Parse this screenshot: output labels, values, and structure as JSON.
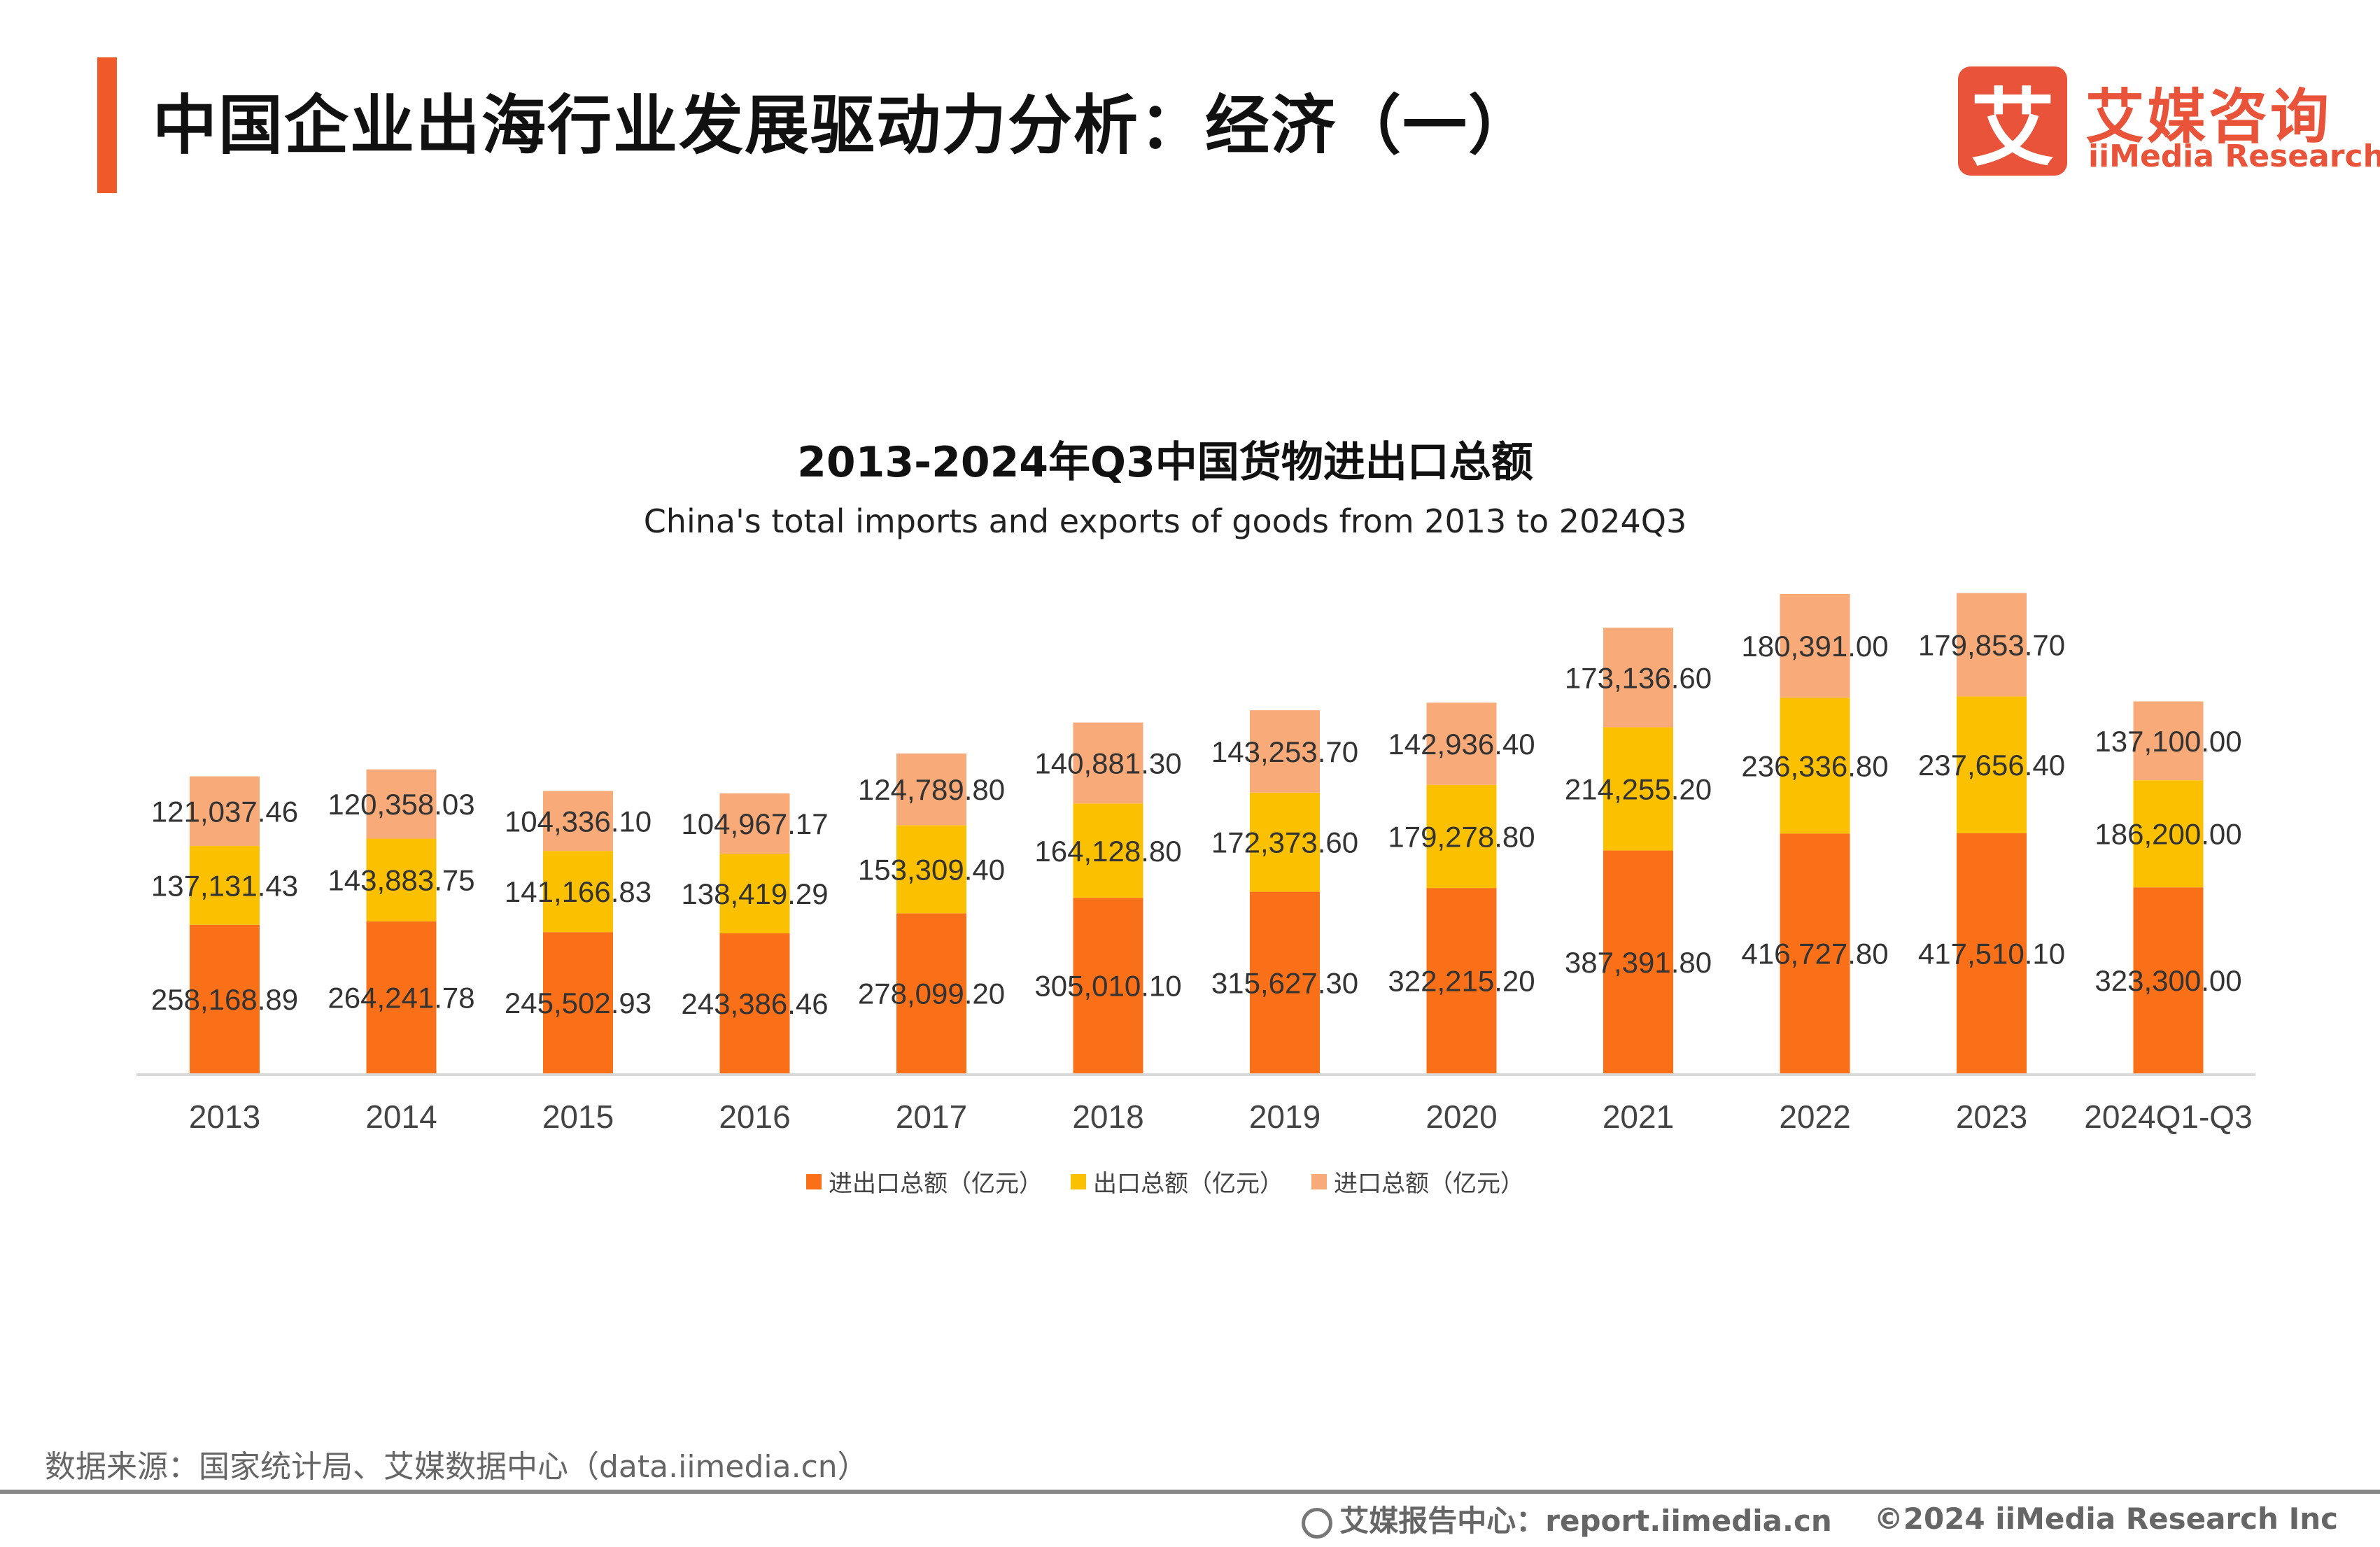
{
  "header": {
    "title": "中国企业出海行业发展驱动力分析：经济（一）",
    "accent_color": "#F05A28"
  },
  "logo": {
    "mark": "艾",
    "name_cn": "艾媒咨询",
    "name_en": "iiMedia Research",
    "color": "#E8533A"
  },
  "chart_data": {
    "type": "bar",
    "stacked": true,
    "title": "2013-2024年Q3中国货物进出口总额",
    "subtitle": "China's total imports and exports of goods from 2013 to 2024Q3",
    "xlabel": "",
    "ylabel": "",
    "grid": false,
    "legend_position": "bottom",
    "categories": [
      "2013",
      "2014",
      "2015",
      "2016",
      "2017",
      "2018",
      "2019",
      "2020",
      "2021",
      "2022",
      "2023",
      "2024Q1-Q3"
    ],
    "series": [
      {
        "name": "进出口总额（亿元）",
        "color": "#FA7019",
        "values": [
          258168.89,
          264241.78,
          245502.93,
          243386.46,
          278099.2,
          305010.1,
          315627.3,
          322215.2,
          387391.8,
          416727.8,
          417510.1,
          323300.0
        ],
        "labels": [
          "258,168.89",
          "264,241.78",
          "245,502.93",
          "243,386.46",
          "278,099.20",
          "305,010.10",
          "315,627.30",
          "322,215.20",
          "387,391.80",
          "416,727.80",
          "417,510.10",
          "323,300.00"
        ]
      },
      {
        "name": "出口总额（亿元）",
        "color": "#FBC100",
        "values": [
          137131.43,
          143883.75,
          141166.83,
          138419.29,
          153309.4,
          164128.8,
          172373.6,
          179278.8,
          214255.2,
          236336.8,
          237656.4,
          186200.0
        ],
        "labels": [
          "137,131.43",
          "143,883.75",
          "141,166.83",
          "138,419.29",
          "153,309.40",
          "164,128.80",
          "172,373.60",
          "179,278.80",
          "214,255.20",
          "236,336.80",
          "237,656.40",
          "186,200.00"
        ]
      },
      {
        "name": "进口总额（亿元）",
        "color": "#F8AA78",
        "values": [
          121037.46,
          120358.03,
          104336.1,
          104967.17,
          124789.8,
          140881.3,
          143253.7,
          142936.4,
          173136.6,
          180391.0,
          179853.7,
          137100.0
        ],
        "labels": [
          "121,037.46",
          "120,358.03",
          "104,336.10",
          "104,967.17",
          "124,789.80",
          "140,881.30",
          "143,253.70",
          "142,936.40",
          "173,136.60",
          "180,391.00",
          "179,853.70",
          "137,100.00"
        ]
      }
    ]
  },
  "footer": {
    "source": "数据来源：国家统计局、艾媒数据中心（data.iimedia.cn）",
    "report_center": "艾媒报告中心：report.iimedia.cn",
    "copyright": "©2024  iiMedia Research  Inc"
  }
}
